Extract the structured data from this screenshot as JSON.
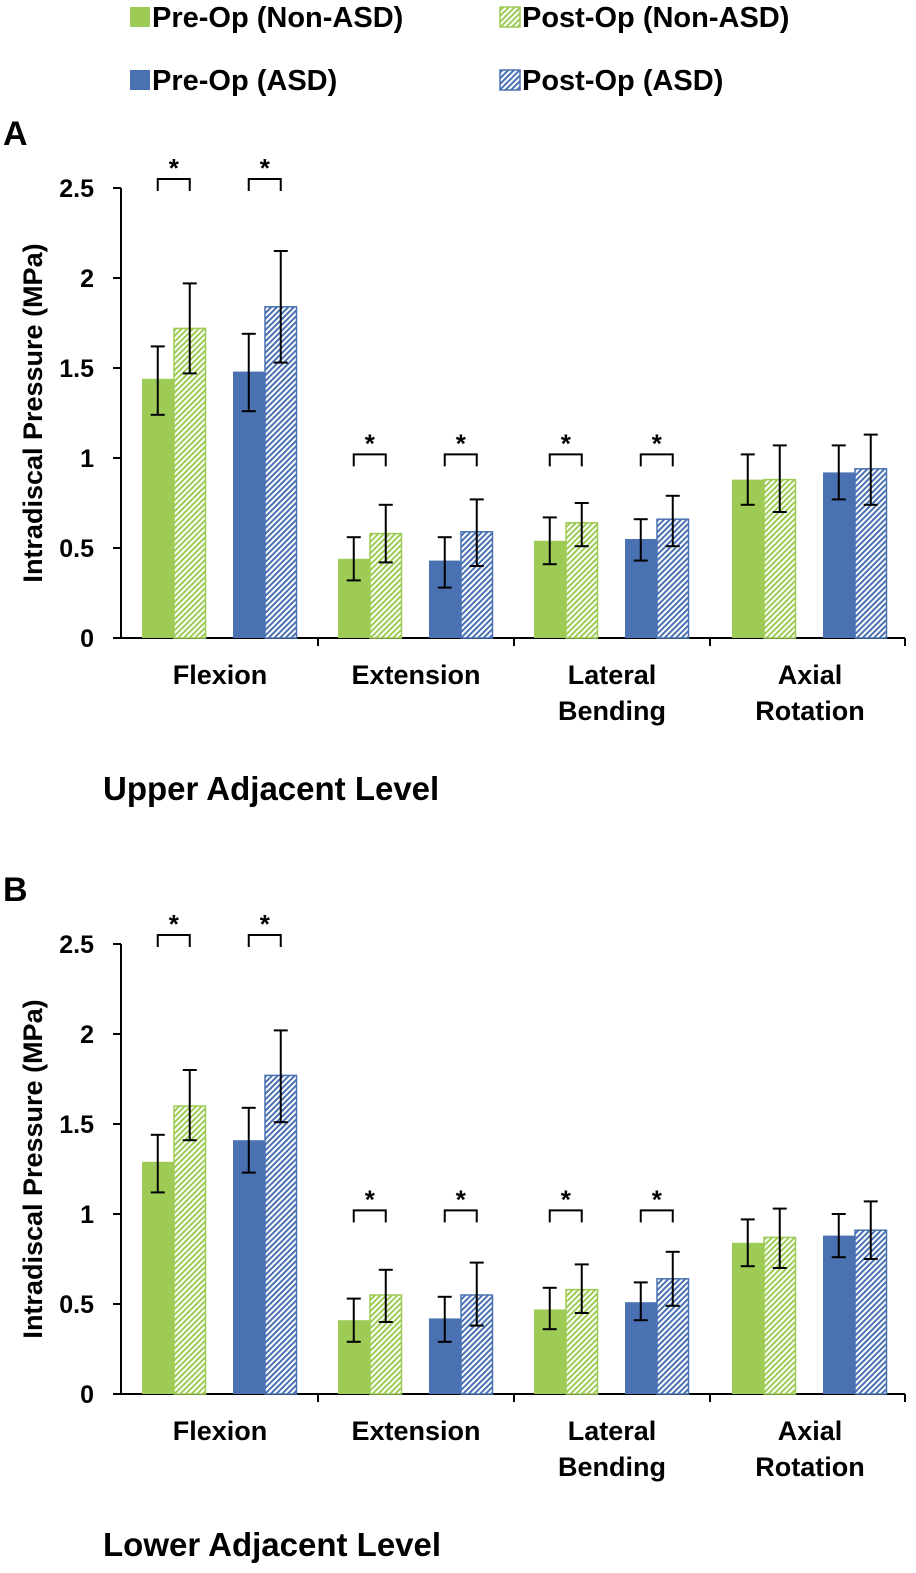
{
  "chart_data": {
    "type": "bar",
    "legend": {
      "placement": "top",
      "entries": [
        "Pre-Op (Non-ASD)",
        "Post-Op (Non-ASD)",
        "Pre-Op (ASD)",
        "Post-Op (ASD)"
      ]
    },
    "series_styles": [
      {
        "color": "#9dcb55",
        "pattern": "solid"
      },
      {
        "color": "#9dcb55",
        "pattern": "hatch"
      },
      {
        "color": "#4a72b2",
        "pattern": "solid"
      },
      {
        "color": "#4a72b2",
        "pattern": "hatch"
      }
    ],
    "panels": [
      {
        "label": "A",
        "title": "Upper Adjacent Level",
        "ylabel": "Intradiscal Pressure  (MPa)",
        "ylim": [
          0,
          2.5
        ],
        "yticks": [
          "0",
          "0.5",
          "1",
          "1.5",
          "2",
          "2.5"
        ],
        "categories": [
          [
            "Flexion"
          ],
          [
            "Extension"
          ],
          [
            "Lateral",
            "Bending"
          ],
          [
            "Axial",
            "Rotation"
          ]
        ],
        "series": [
          {
            "name": "Pre-Op (Non-ASD)",
            "values": [
              1.44,
              0.44,
              0.54,
              0.88
            ],
            "err_low": [
              1.24,
              0.32,
              0.41,
              0.74
            ],
            "err_high": [
              1.62,
              0.56,
              0.67,
              1.02
            ]
          },
          {
            "name": "Post-Op (Non-ASD)",
            "values": [
              1.72,
              0.58,
              0.64,
              0.88
            ],
            "err_low": [
              1.47,
              0.42,
              0.51,
              0.7
            ],
            "err_high": [
              1.97,
              0.74,
              0.75,
              1.07
            ]
          },
          {
            "name": "Pre-Op (ASD)",
            "values": [
              1.48,
              0.43,
              0.55,
              0.92
            ],
            "err_low": [
              1.26,
              0.28,
              0.43,
              0.77
            ],
            "err_high": [
              1.69,
              0.56,
              0.66,
              1.07
            ]
          },
          {
            "name": "Post-Op (ASD)",
            "values": [
              1.84,
              0.59,
              0.66,
              0.94
            ],
            "err_low": [
              1.53,
              0.4,
              0.51,
              0.74
            ],
            "err_high": [
              2.15,
              0.77,
              0.79,
              1.13
            ]
          }
        ],
        "significance": [
          {
            "category": 0,
            "pair": [
              0,
              1
            ],
            "level": 2.55,
            "mark": "*"
          },
          {
            "category": 0,
            "pair": [
              2,
              3
            ],
            "level": 2.55,
            "mark": "*"
          },
          {
            "category": 1,
            "pair": [
              0,
              1
            ],
            "level": 1.02,
            "mark": "*"
          },
          {
            "category": 1,
            "pair": [
              2,
              3
            ],
            "level": 1.02,
            "mark": "*"
          },
          {
            "category": 2,
            "pair": [
              0,
              1
            ],
            "level": 1.02,
            "mark": "*"
          },
          {
            "category": 2,
            "pair": [
              2,
              3
            ],
            "level": 1.02,
            "mark": "*"
          }
        ]
      },
      {
        "label": "B",
        "title": "Lower Adjacent Level",
        "ylabel": "Intradiscal Pressure  (MPa)",
        "ylim": [
          0,
          2.5
        ],
        "yticks": [
          "0",
          "0.5",
          "1",
          "1.5",
          "2",
          "2.5"
        ],
        "categories": [
          [
            "Flexion"
          ],
          [
            "Extension"
          ],
          [
            "Lateral",
            "Bending"
          ],
          [
            "Axial",
            "Rotation"
          ]
        ],
        "series": [
          {
            "name": "Pre-Op (Non-ASD)",
            "values": [
              1.29,
              0.41,
              0.47,
              0.84
            ],
            "err_low": [
              1.12,
              0.29,
              0.36,
              0.71
            ],
            "err_high": [
              1.44,
              0.53,
              0.59,
              0.97
            ]
          },
          {
            "name": "Post-Op (Non-ASD)",
            "values": [
              1.6,
              0.55,
              0.58,
              0.87
            ],
            "err_low": [
              1.41,
              0.4,
              0.45,
              0.7
            ],
            "err_high": [
              1.8,
              0.69,
              0.72,
              1.03
            ]
          },
          {
            "name": "Pre-Op (ASD)",
            "values": [
              1.41,
              0.42,
              0.51,
              0.88
            ],
            "err_low": [
              1.23,
              0.29,
              0.41,
              0.76
            ],
            "err_high": [
              1.59,
              0.54,
              0.62,
              1.0
            ]
          },
          {
            "name": "Post-Op (ASD)",
            "values": [
              1.77,
              0.55,
              0.64,
              0.91
            ],
            "err_low": [
              1.51,
              0.38,
              0.49,
              0.75
            ],
            "err_high": [
              2.02,
              0.73,
              0.79,
              1.07
            ]
          }
        ],
        "significance": [
          {
            "category": 0,
            "pair": [
              0,
              1
            ],
            "level": 2.55,
            "mark": "*"
          },
          {
            "category": 0,
            "pair": [
              2,
              3
            ],
            "level": 2.55,
            "mark": "*"
          },
          {
            "category": 1,
            "pair": [
              0,
              1
            ],
            "level": 1.02,
            "mark": "*"
          },
          {
            "category": 1,
            "pair": [
              2,
              3
            ],
            "level": 1.02,
            "mark": "*"
          },
          {
            "category": 2,
            "pair": [
              0,
              1
            ],
            "level": 1.02,
            "mark": "*"
          },
          {
            "category": 2,
            "pair": [
              2,
              3
            ],
            "level": 1.02,
            "mark": "*"
          }
        ]
      }
    ]
  }
}
